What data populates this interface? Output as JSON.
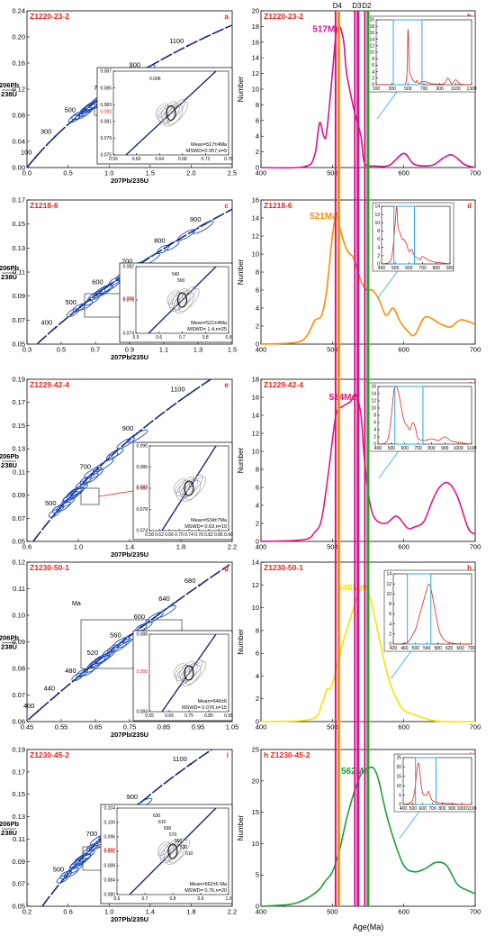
{
  "colors": {
    "ellipse": "#1f4fbf",
    "concordia": "#1a2a6c",
    "inset_box": "#29a9e0",
    "sample_label": "#e8221b",
    "line_D4": "#ff8c00",
    "line_D3": "#d6148e",
    "line_D2": "#2ca02c"
  },
  "vlines": {
    "labels": [
      "D4",
      "D3",
      "D2"
    ],
    "ages": [
      507,
      534,
      548
    ]
  },
  "xaxis_title": "Age(Ma)",
  "panels": [
    {
      "sample": "Z1220-23-2",
      "left_letter": "a",
      "right_letter": "b",
      "concordia": {
        "xlim": [
          0.0,
          2.5
        ],
        "ylim": [
          0.0,
          0.24
        ],
        "xticks": [
          "0.0",
          "0.5",
          "1.0",
          "1.5",
          "2.0",
          "2.5"
        ],
        "yticks": [
          "0.00",
          "0.04",
          "0.08",
          "0.12",
          "0.16",
          "0.20",
          "0.24"
        ],
        "age_labels": [
          "100",
          "300",
          "500",
          "700",
          "900",
          "1100"
        ],
        "inset": {
          "xticks": [
            "0.56",
            "0.60",
            "0.64",
            "0.68",
            "0.72",
            "0.76"
          ],
          "yticks": [
            "0.075",
            "0.079",
            "0.081",
            "0.083",
            "0.085",
            "0.087"
          ],
          "red_label": "0.083",
          "extra_labels": [
            "0.096"
          ],
          "mean": "Mean=517±4Ma",
          "mswd": "MSWD=0.057,n=9"
        }
      },
      "kde": {
        "peak_label": "517Ma",
        "peak_color": "#d6148e",
        "xlim": [
          400,
          700
        ],
        "ylim": [
          0,
          20
        ],
        "xticks": [
          "400",
          "500",
          "600",
          "700"
        ],
        "yticks": [
          "0",
          "2",
          "4",
          "6",
          "8",
          "10",
          "12",
          "14",
          "16",
          "18",
          "20"
        ],
        "curve": {
          "x": [
            400,
            460,
            475,
            482,
            488,
            492,
            500,
            505,
            510,
            516,
            520,
            530,
            540,
            545,
            560,
            580,
            600,
            615,
            640,
            655,
            668,
            685,
            700
          ],
          "y": [
            0,
            0.1,
            1.5,
            5.7,
            4,
            4.5,
            12,
            17,
            18,
            16,
            12,
            7.5,
            4,
            0.6,
            0.2,
            0.3,
            1.8,
            0.4,
            0.3,
            1.2,
            1.6,
            0.4,
            0
          ]
        },
        "inset": {
          "xticks": [
            "100",
            "300",
            "500",
            "700",
            "900",
            "1100",
            "1300"
          ],
          "yticks": [
            "0",
            "2",
            "4",
            "6",
            "8",
            "10",
            "12",
            "14",
            "16",
            "18",
            "20"
          ],
          "curve": {
            "x": [
              100,
              400,
              470,
              490,
              500,
              510,
              520,
              540,
              560,
              600,
              610,
              640,
              700,
              800,
              950,
              1000,
              1050,
              1100,
              1150,
              1200,
              1300
            ],
            "y": [
              0,
              0,
              0.5,
              5,
              17,
              10,
              4,
              2.5,
              1.5,
              0.6,
              1.3,
              0.4,
              1,
              0.3,
              0.3,
              2,
              0.4,
              1.5,
              0.3,
              0.1,
              0
            ],
            "xlim": [
              100,
              1300
            ],
            "ylim": [
              0,
              20
            ]
          }
        }
      }
    },
    {
      "sample": "Z1218-6",
      "left_letter": "c",
      "right_letter": "d",
      "concordia": {
        "xlim": [
          0.3,
          1.6
        ],
        "ylim": [
          0.05,
          0.17
        ],
        "xticks": [
          "0.3",
          "0.5",
          "0.7",
          "0.9",
          "1.1",
          "1.3",
          "1.5"
        ],
        "yticks": [
          "0.05",
          "0.07",
          "0.09",
          "0.11",
          "0.13",
          "0.15",
          "0.17"
        ],
        "age_labels": [
          "400",
          "500",
          "600",
          "700",
          "800",
          "900"
        ],
        "inset": {
          "xticks": [
            "0.5",
            "0.6",
            "0.7",
            "0.8",
            "0.9"
          ],
          "yticks": [
            "0.074",
            "0.078",
            "0.082"
          ],
          "red_label": "0.082",
          "extra_labels": [
            "540",
            "500"
          ],
          "mean": "Mean=521±4Ma",
          "mswd": "MSWD= 1.4,n=25"
        }
      },
      "kde": {
        "peak_label": "521Ma",
        "peak_color": "#ff8c00",
        "xlim": [
          400,
          700
        ],
        "ylim": [
          0,
          16
        ],
        "xticks": [
          "400",
          "500",
          "600",
          "700"
        ],
        "yticks": [
          "0",
          "2",
          "4",
          "6",
          "8",
          "10",
          "12",
          "14",
          "16"
        ],
        "curve": {
          "x": [
            400,
            450,
            465,
            475,
            485,
            492,
            500,
            506,
            510,
            520,
            530,
            540,
            548,
            556,
            565,
            575,
            585,
            595,
            605,
            615,
            630,
            650,
            665,
            680,
            700
          ],
          "y": [
            0,
            0.2,
            1,
            2.6,
            3.2,
            6,
            12,
            14.5,
            13,
            10.5,
            9.5,
            7,
            6,
            6,
            5,
            3.2,
            4,
            2.5,
            1.5,
            1,
            3,
            2.3,
            1.9,
            2.7,
            2.2
          ]
        },
        "inset": {
          "xticks": [
            "400",
            "500",
            "600",
            "700",
            "800",
            "900"
          ],
          "yticks": [
            "0",
            "2",
            "4",
            "6",
            "8",
            "10",
            "12",
            "14"
          ],
          "curve": {
            "x": [
              400,
              460,
              480,
              500,
              510,
              520,
              530,
              550,
              560,
              580,
              600,
              620,
              640,
              660,
              680,
              700,
              750,
              800,
              850,
              900
            ],
            "y": [
              0,
              0.5,
              3,
              10,
              14,
              9,
              8,
              6,
              6,
              5,
              3,
              3.5,
              2,
              1.5,
              1,
              1.8,
              0.8,
              0.4,
              0.2,
              0
            ],
            "xlim": [
              400,
              900
            ],
            "ylim": [
              0,
              14
            ]
          }
        }
      }
    },
    {
      "sample": "Z1229-42-4",
      "left_letter": "e",
      "right_letter": "f",
      "concordia": {
        "xlim": [
          0.3,
          2.4
        ],
        "ylim": [
          0.05,
          0.2
        ],
        "xticks": [
          "0.6",
          "1.0",
          "1.4",
          "1.8",
          "2.2"
        ],
        "yticks": [
          "0.05",
          "0.07",
          "0.09",
          "0.11",
          "0.13",
          "0.15",
          "0.17",
          "0.19"
        ],
        "age_labels": [
          "500",
          "700",
          "900",
          "1100"
        ],
        "inset": {
          "xticks": [
            "0.58",
            "0.62",
            "0.66",
            "0.70",
            "0.74",
            "0.78",
            "0.82",
            "0.86",
            "0.90"
          ],
          "yticks": [
            "0.074",
            "0.078",
            "0.082",
            "0.086",
            "0.090"
          ],
          "red_label": "0.082",
          "extra_labels": [],
          "mean": "Mean=534±7Ma",
          "mswd": "MSWD= 0.63,n=19"
        }
      },
      "kde": {
        "peak_label": "534Ma",
        "peak_color": "#e6177a",
        "xlim": [
          400,
          700
        ],
        "ylim": [
          0,
          18
        ],
        "xticks": [
          "400",
          "500",
          "600",
          "700"
        ],
        "yticks": [
          "0",
          "2",
          "4",
          "6",
          "8",
          "10",
          "12",
          "14",
          "16",
          "18"
        ],
        "curve": {
          "x": [
            400,
            460,
            475,
            485,
            495,
            505,
            515,
            525,
            533,
            540,
            545,
            552,
            560,
            575,
            590,
            605,
            615,
            628,
            640,
            650,
            662,
            675,
            690,
            700
          ],
          "y": [
            0,
            0.2,
            1,
            2.5,
            8,
            14,
            15,
            15.5,
            16.3,
            14,
            9,
            4.5,
            2.5,
            2,
            2.8,
            1.5,
            1.6,
            2.2,
            4.5,
            6,
            6.5,
            5,
            1.5,
            0.8
          ]
        },
        "inset": {
          "xticks": [
            "400",
            "500",
            "600",
            "700",
            "800",
            "900",
            "1000",
            "1100"
          ],
          "yticks": [
            "0",
            "2",
            "4",
            "6",
            "8",
            "10",
            "12",
            "14",
            "16"
          ],
          "curve": {
            "x": [
              400,
              470,
              500,
              520,
              540,
              560,
              580,
              600,
              620,
              640,
              660,
              680,
              700,
              750,
              800,
              850,
              900,
              950,
              1000,
              1050,
              1100
            ],
            "y": [
              0,
              1,
              8,
              15,
              16,
              13,
              9,
              6,
              5,
              4,
              6,
              4.5,
              1.5,
              1,
              1.5,
              1,
              2,
              0.8,
              0.5,
              0.2,
              0
            ],
            "xlim": [
              400,
              1100
            ],
            "ylim": [
              0,
              16
            ]
          }
        }
      }
    },
    {
      "sample": "Z1230-50-1",
      "left_letter": "g",
      "right_letter": "h",
      "concordia": {
        "xlim": [
          0.45,
          1.05
        ],
        "ylim": [
          0.06,
          0.12
        ],
        "xticks": [
          "0.45",
          "0.55",
          "0.65",
          "0.75",
          "0.85",
          "0.95",
          "1.05"
        ],
        "yticks": [
          "0.06",
          "0.07",
          "0.08",
          "0.09",
          "0.10",
          "0.11",
          "0.12"
        ],
        "age_labels": [
          "400",
          "440",
          "480",
          "520",
          "560",
          "600",
          "640",
          "680"
        ],
        "extra_text": "Ma",
        "inset": {
          "xticks": [
            "0.55",
            "0.65",
            "0.75",
            "0.85",
            "0.95"
          ],
          "yticks": [
            "0.084",
            "0.088"
          ],
          "red_label": "0.088",
          "extra_labels": [],
          "mean": "Mean=546±6",
          "mswd": "MSWD= 0.076,n=15"
        }
      },
      "kde": {
        "peak_label": "546Ma",
        "peak_color": "#f2e600",
        "xlim": [
          400,
          700
        ],
        "ylim": [
          0,
          14
        ],
        "xticks": [
          "400",
          "500",
          "600",
          "700"
        ],
        "yticks": [
          "0",
          "2",
          "4",
          "6",
          "8",
          "10",
          "12",
          "14"
        ],
        "curve": {
          "x": [
            400,
            470,
            485,
            492,
            498,
            505,
            515,
            525,
            535,
            545,
            552,
            560,
            570,
            580,
            590,
            600,
            620,
            640,
            660,
            680,
            700
          ],
          "y": [
            0,
            0.2,
            1.5,
            2.8,
            3,
            4.5,
            7,
            9,
            11,
            12,
            11,
            9,
            6,
            3.5,
            2,
            1,
            0.5,
            0.1,
            0,
            0,
            0
          ]
        },
        "inset": {
          "xticks": [
            "420",
            "460",
            "500",
            "540",
            "580",
            "620",
            "660",
            "700"
          ],
          "yticks": [
            "0",
            "2",
            "4",
            "6",
            "8",
            "10",
            "12",
            "14"
          ],
          "curve": {
            "x": [
              420,
              470,
              490,
              500,
              510,
              520,
              530,
              540,
              548,
              555,
              565,
              575,
              585,
              600,
              620,
              660,
              700
            ],
            "y": [
              0,
              0.3,
              2,
              3,
              5,
              7,
              9,
              11,
              12,
              11,
              8,
              5,
              2.5,
              1,
              0.3,
              0,
              0
            ],
            "xlim": [
              420,
              700
            ],
            "ylim": [
              0,
              14
            ]
          }
        }
      }
    },
    {
      "sample": "Z1230-45-2",
      "left_letter": "i",
      "right_letter": "j",
      "right_prefix": "h",
      "concordia": {
        "xlim": [
          0.2,
          2.4
        ],
        "ylim": [
          0.05,
          0.2
        ],
        "xticks": [
          "0.2",
          "0.6",
          "1.0",
          "1.4",
          "1.8",
          "2.2"
        ],
        "yticks": [
          "0.05",
          "0.07",
          "0.09",
          "0.11",
          "0.13",
          "0.15",
          "0.17",
          "0.19"
        ],
        "age_labels": [
          "500",
          "700",
          "900",
          "1100"
        ],
        "inset": {
          "xticks": [
            "0.6",
            "0.7",
            "0.8",
            "0.9",
            "1.0"
          ],
          "yticks": [
            "0.080",
            "0.084",
            "0.088",
            "0.092",
            "0.096",
            "0.100",
            "0.104"
          ],
          "red_label": "0.088",
          "extra_labels": [
            "630",
            "610",
            "590",
            "570",
            "550",
            "530",
            "510"
          ],
          "mean": "Mean=562±6  Ma",
          "mswd": "MSWD= 0.76,n=20"
        }
      },
      "kde": {
        "peak_label": "562Ma",
        "peak_color": "#1a9e3a",
        "xlim": [
          400,
          700
        ],
        "ylim": [
          0,
          25
        ],
        "xticks": [
          "400",
          "500",
          "600",
          "700"
        ],
        "yticks": [
          "0",
          "5",
          "10",
          "15",
          "20",
          "25"
        ],
        "curve": {
          "x": [
            400,
            440,
            460,
            480,
            490,
            500,
            510,
            520,
            530,
            540,
            550,
            558,
            565,
            575,
            585,
            600,
            615,
            630,
            645,
            660,
            675,
            690,
            700
          ],
          "y": [
            0,
            0.3,
            1,
            2.5,
            4,
            5.5,
            9,
            14,
            18,
            21,
            22,
            22,
            20,
            15,
            11,
            6.5,
            5.5,
            6,
            7,
            6.5,
            3.5,
            2.5,
            2
          ]
        },
        "inset": {
          "xticks": [
            "400",
            "500",
            "600",
            "700",
            "800",
            "900",
            "1000",
            "1100"
          ],
          "yticks": [
            "0",
            "5",
            "10",
            "15",
            "20",
            "25"
          ],
          "curve": {
            "x": [
              400,
              480,
              500,
              520,
              540,
              555,
              565,
              580,
              600,
              620,
              640,
              660,
              680,
              700,
              750,
              800,
              850,
              900,
              950,
              1000,
              1100
            ],
            "y": [
              0,
              1,
              3,
              8,
              18,
              22,
              20,
              12,
              6,
              5,
              5,
              7,
              4,
              2,
              1,
              0.8,
              0.5,
              0.5,
              0.2,
              0.1,
              0
            ],
            "xlim": [
              400,
              1100
            ],
            "ylim": [
              0,
              25
            ]
          }
        }
      }
    }
  ]
}
